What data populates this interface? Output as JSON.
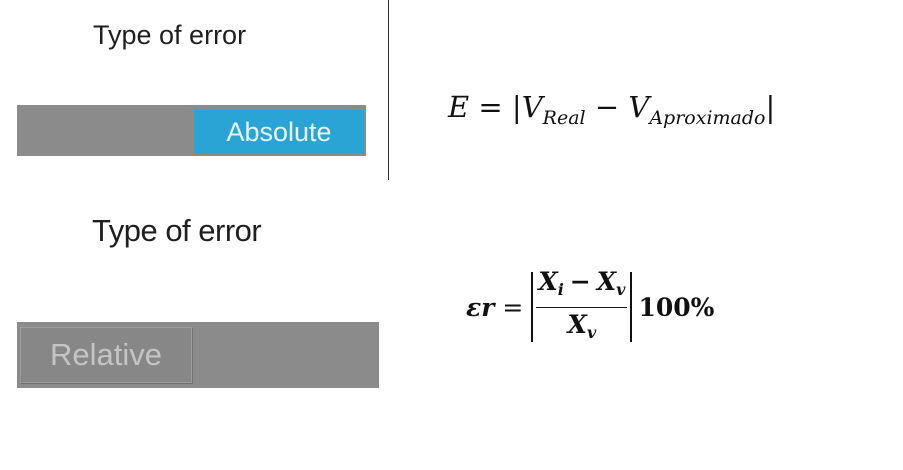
{
  "top": {
    "label": "Type of error",
    "switch_label": "Absolute",
    "formula": {
      "lhs": "E",
      "eq": "=",
      "bar_open": "|",
      "term1": "V",
      "term1_sub": "Real",
      "minus": "−",
      "term2": "V",
      "term2_sub": "Aproximado",
      "bar_close": "|"
    }
  },
  "bottom": {
    "label": "Type of error",
    "switch_label": "Relative",
    "formula": {
      "lhs": "εr",
      "eq": "=",
      "num_a": "X",
      "num_a_sub": "i",
      "minus": "−",
      "num_b": "X",
      "num_b_sub": "v",
      "den": "X",
      "den_sub": "v",
      "factor": "100%"
    }
  },
  "colors": {
    "track": "#8b8b8b",
    "thumb_active": "#2aa4d4",
    "thumb_inactive": "#878787"
  }
}
